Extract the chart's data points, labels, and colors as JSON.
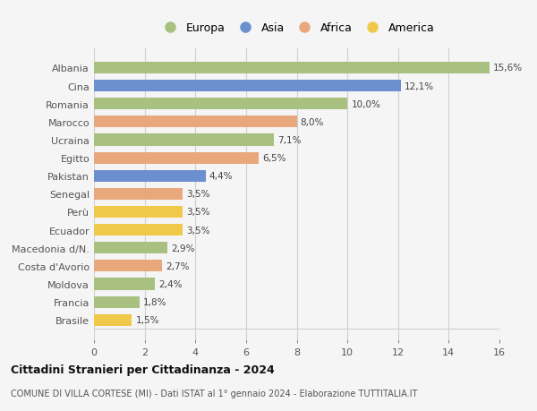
{
  "countries": [
    "Albania",
    "Cina",
    "Romania",
    "Marocco",
    "Ucraina",
    "Egitto",
    "Pakistan",
    "Senegal",
    "Perù",
    "Ecuador",
    "Macedonia d/N.",
    "Costa d'Avorio",
    "Moldova",
    "Francia",
    "Brasile"
  ],
  "values": [
    15.6,
    12.1,
    10.0,
    8.0,
    7.1,
    6.5,
    4.4,
    3.5,
    3.5,
    3.5,
    2.9,
    2.7,
    2.4,
    1.8,
    1.5
  ],
  "labels": [
    "15,6%",
    "12,1%",
    "10,0%",
    "8,0%",
    "7,1%",
    "6,5%",
    "4,4%",
    "3,5%",
    "3,5%",
    "3,5%",
    "2,9%",
    "2,7%",
    "2,4%",
    "1,8%",
    "1,5%"
  ],
  "continent": [
    "Europa",
    "Asia",
    "Europa",
    "Africa",
    "Europa",
    "Africa",
    "Asia",
    "Africa",
    "America",
    "America",
    "Europa",
    "Africa",
    "Europa",
    "Europa",
    "America"
  ],
  "colors": {
    "Europa": "#a8c080",
    "Asia": "#6b8fcf",
    "Africa": "#e8a87c",
    "America": "#f0c84a"
  },
  "xlim": [
    0,
    16
  ],
  "xticks": [
    0,
    2,
    4,
    6,
    8,
    10,
    12,
    14,
    16
  ],
  "title": "Cittadini Stranieri per Cittadinanza - 2024",
  "subtitle": "COMUNE DI VILLA CORTESE (MI) - Dati ISTAT al 1° gennaio 2024 - Elaborazione TUTTITALIA.IT",
  "background_color": "#f5f5f5",
  "grid_color": "#d0d0d0",
  "bar_height": 0.65
}
